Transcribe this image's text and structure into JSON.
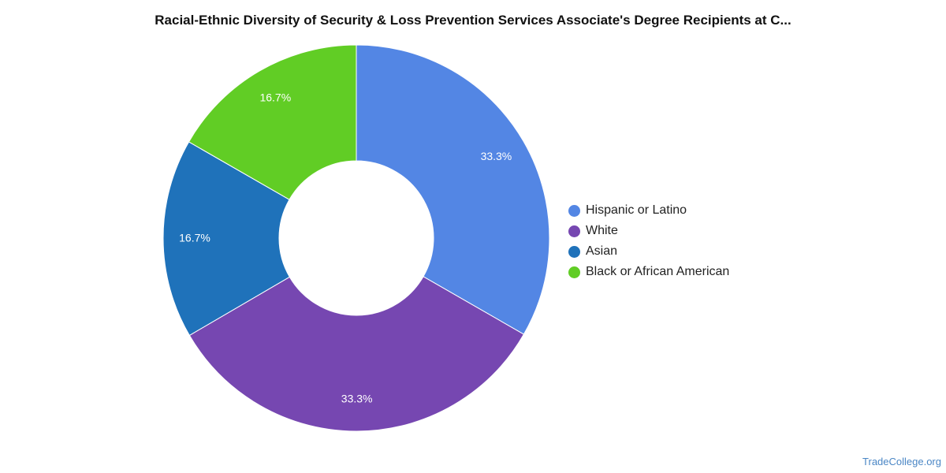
{
  "chart_data": {
    "type": "pie",
    "title": "Racial-Ethnic Diversity of Security & Loss Prevention Services Associate's Degree Recipients at C...",
    "series": [
      {
        "name": "Hispanic or Latino",
        "value": 33.3,
        "label": "33.3%",
        "color": "#5386e4"
      },
      {
        "name": "White",
        "value": 33.3,
        "label": "33.3%",
        "color": "#7647b1"
      },
      {
        "name": "Asian",
        "value": 16.7,
        "label": "16.7%",
        "color": "#1f72ba"
      },
      {
        "name": "Black or African American",
        "value": 16.7,
        "label": "16.7%",
        "color": "#61cd25"
      }
    ],
    "donut": true,
    "legend_position": "right"
  },
  "watermark": "TradeCollege.org"
}
